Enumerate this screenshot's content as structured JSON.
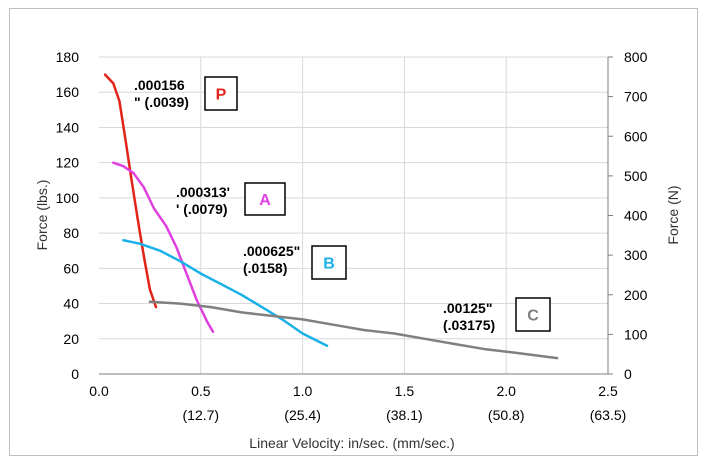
{
  "chart_data": {
    "type": "line",
    "xlabel": "Linear Velocity: in/sec. (mm/sec.)",
    "ylabel_left": "Force (lbs.)",
    "ylabel_right": "Force (N)",
    "xlim": [
      0,
      2.5
    ],
    "ylim_left": [
      0,
      180
    ],
    "ylim_right": [
      0,
      800
    ],
    "x_ticks": [
      "0.0",
      "0.5",
      "1.0",
      "1.5",
      "2.0",
      "2.5"
    ],
    "x_ticks_mm": [
      "(12.7)",
      "(25.4)",
      "(38.1)",
      "(50.8)",
      "(63.5)"
    ],
    "y_ticks_left": [
      "0",
      "20",
      "40",
      "60",
      "80",
      "100",
      "120",
      "140",
      "160",
      "180"
    ],
    "y_ticks_right": [
      "0",
      "100",
      "200",
      "300",
      "400",
      "500",
      "600",
      "700",
      "800"
    ],
    "grid": true,
    "series": [
      {
        "name": "P",
        "color": "#e2231a",
        "annotation": [
          ".000156",
          "\" (.0039)"
        ],
        "x": [
          0.03,
          0.07,
          0.1,
          0.13,
          0.16,
          0.19,
          0.22,
          0.25,
          0.28
        ],
        "y": [
          170,
          165,
          155,
          133,
          110,
          88,
          67,
          48,
          38
        ]
      },
      {
        "name": "A",
        "color": "#e040e0",
        "annotation": [
          ".000313'",
          "' (.0079)"
        ],
        "x": [
          0.07,
          0.12,
          0.17,
          0.22,
          0.27,
          0.33,
          0.38,
          0.43,
          0.48,
          0.53,
          0.56
        ],
        "y": [
          120,
          118,
          114,
          106,
          94,
          84,
          72,
          57,
          42,
          30,
          24
        ]
      },
      {
        "name": "B",
        "color": "#1ab0e8",
        "annotation": [
          ".000625\"",
          "(.0158)"
        ],
        "x": [
          0.12,
          0.2,
          0.3,
          0.4,
          0.5,
          0.6,
          0.7,
          0.8,
          0.9,
          1.0,
          1.12
        ],
        "y": [
          76,
          74,
          70,
          64,
          57,
          51,
          45,
          38,
          31,
          23,
          16
        ]
      },
      {
        "name": "C",
        "color": "#808080",
        "annotation": [
          ".00125\"",
          "(.03175)"
        ],
        "x": [
          0.25,
          0.4,
          0.55,
          0.7,
          0.85,
          1.0,
          1.15,
          1.3,
          1.45,
          1.6,
          1.75,
          1.9,
          2.05,
          2.25
        ],
        "y": [
          41,
          40,
          38,
          35,
          33,
          31,
          28,
          25,
          23,
          20,
          17,
          14,
          12,
          9
        ]
      }
    ]
  }
}
